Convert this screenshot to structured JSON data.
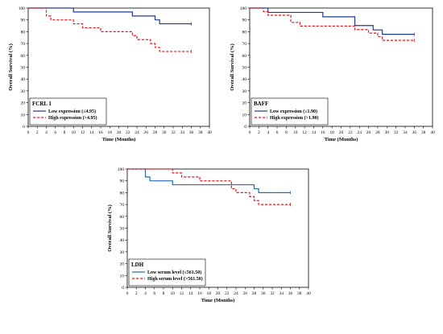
{
  "chart_data": [
    {
      "type": "line",
      "step": true,
      "xlabel": "Time (Months)",
      "ylabel": "Overall Survival  (%)",
      "xlim": [
        0,
        40
      ],
      "ylim": [
        0,
        100
      ],
      "xticks": [
        0,
        2,
        4,
        6,
        8,
        10,
        12,
        14,
        16,
        18,
        20,
        22,
        24,
        26,
        28,
        30,
        32,
        34,
        36,
        38,
        40
      ],
      "yticks": [
        0,
        10,
        20,
        30,
        40,
        50,
        60,
        70,
        80,
        90,
        100
      ],
      "legend": {
        "title": "FCRL 1",
        "position": "bottom-left",
        "entries": [
          "Low expression (≤4.95)",
          "High expression  (>4.95)"
        ]
      },
      "series": [
        {
          "name": "Low expression (≤4.95)",
          "color": "#1f3a93",
          "dash": "solid",
          "points": [
            [
              0,
              100
            ],
            [
              10,
              100
            ],
            [
              10,
              96.7
            ],
            [
              23,
              96.7
            ],
            [
              23,
              93.3
            ],
            [
              28,
              93.3
            ],
            [
              28,
              90
            ],
            [
              29,
              90
            ],
            [
              29,
              86.7
            ],
            [
              36,
              86.7
            ]
          ]
        },
        {
          "name": "High expression  (>4.95)",
          "color": "#e8191c",
          "dash": "dashed",
          "points": [
            [
              0,
              100
            ],
            [
              4,
              100
            ],
            [
              4,
              93.3
            ],
            [
              5,
              93.3
            ],
            [
              5,
              90
            ],
            [
              10,
              90
            ],
            [
              10,
              86.7
            ],
            [
              12,
              86.7
            ],
            [
              12,
              83.3
            ],
            [
              16,
              83.3
            ],
            [
              16,
              80
            ],
            [
              23,
              80
            ],
            [
              23,
              76.7
            ],
            [
              24,
              76.7
            ],
            [
              24,
              73.3
            ],
            [
              27,
              73.3
            ],
            [
              27,
              70
            ],
            [
              28,
              70
            ],
            [
              28,
              66.7
            ],
            [
              29,
              66.7
            ],
            [
              29,
              63.3
            ],
            [
              36,
              63.3
            ]
          ]
        }
      ]
    },
    {
      "type": "line",
      "step": true,
      "xlabel": "Time (Months)",
      "ylabel": "Overall Survival  (%)",
      "xlim": [
        0,
        40
      ],
      "ylim": [
        0,
        100
      ],
      "xticks": [
        0,
        2,
        4,
        6,
        8,
        10,
        12,
        14,
        16,
        18,
        20,
        22,
        24,
        26,
        28,
        30,
        32,
        34,
        36,
        38,
        40
      ],
      "yticks": [
        0,
        10,
        20,
        30,
        40,
        50,
        60,
        70,
        80,
        90,
        100
      ],
      "legend": {
        "title": "BAFF",
        "position": "bottom-left",
        "entries": [
          "Low expression (≤1.90)",
          "High expression  (>1.90)"
        ]
      },
      "series": [
        {
          "name": "Low expression (≤1.90)",
          "color": "#1f3a93",
          "dash": "solid",
          "points": [
            [
              0,
              100
            ],
            [
              4,
              100
            ],
            [
              4,
              96.3
            ],
            [
              16,
              96.3
            ],
            [
              16,
              92.6
            ],
            [
              23,
              92.6
            ],
            [
              23,
              85.2
            ],
            [
              27,
              85.2
            ],
            [
              27,
              81.5
            ],
            [
              29,
              81.5
            ],
            [
              29,
              77.8
            ],
            [
              36,
              77.8
            ]
          ]
        },
        {
          "name": "High expression  (>1.90)",
          "color": "#e8191c",
          "dash": "dashed",
          "points": [
            [
              0,
              100
            ],
            [
              3,
              100
            ],
            [
              3,
              97
            ],
            [
              4,
              97
            ],
            [
              4,
              93.9
            ],
            [
              9,
              93.9
            ],
            [
              9,
              87.9
            ],
            [
              11,
              87.9
            ],
            [
              11,
              84.8
            ],
            [
              23,
              84.8
            ],
            [
              23,
              81.8
            ],
            [
              26,
              81.8
            ],
            [
              26,
              78.8
            ],
            [
              28,
              78.8
            ],
            [
              28,
              75.8
            ],
            [
              29,
              75.8
            ],
            [
              29,
              72.7
            ],
            [
              36,
              72.7
            ]
          ]
        }
      ]
    },
    {
      "type": "line",
      "step": true,
      "xlabel": "Time (Months)",
      "ylabel": "Overall Survival  (%)",
      "xlim": [
        0,
        40
      ],
      "ylim": [
        0,
        100
      ],
      "xticks": [
        0,
        2,
        4,
        6,
        8,
        10,
        12,
        14,
        16,
        18,
        20,
        22,
        24,
        26,
        28,
        30,
        32,
        34,
        36,
        38,
        40
      ],
      "yticks": [
        0,
        10,
        20,
        30,
        40,
        50,
        60,
        70,
        80,
        90,
        100
      ],
      "legend": {
        "title": "LDH",
        "position": "bottom-left",
        "entries": [
          "Low serum level (≤561.50)",
          "High serum level (>561.50)"
        ]
      },
      "series": [
        {
          "name": "Low serum level (≤561.50)",
          "color": "#1f6fb5",
          "dash": "solid",
          "points": [
            [
              0,
              100
            ],
            [
              4,
              100
            ],
            [
              4,
              93.3
            ],
            [
              5,
              93.3
            ],
            [
              5,
              90
            ],
            [
              10,
              90
            ],
            [
              10,
              86.7
            ],
            [
              28,
              86.7
            ],
            [
              28,
              83.3
            ],
            [
              29,
              83.3
            ],
            [
              29,
              80
            ],
            [
              36,
              80
            ]
          ]
        },
        {
          "name": "High serum level (>561.50)",
          "color": "#e8191c",
          "dash": "dashed",
          "points": [
            [
              0,
              100
            ],
            [
              10,
              100
            ],
            [
              10,
              96.7
            ],
            [
              12,
              96.7
            ],
            [
              12,
              93.3
            ],
            [
              16,
              93.3
            ],
            [
              16,
              90
            ],
            [
              23,
              90
            ],
            [
              23,
              83.3
            ],
            [
              24,
              83.3
            ],
            [
              24,
              80
            ],
            [
              27,
              80
            ],
            [
              27,
              76.7
            ],
            [
              28,
              76.7
            ],
            [
              28,
              73.3
            ],
            [
              29,
              73.3
            ],
            [
              29,
              70
            ],
            [
              36,
              70
            ]
          ]
        }
      ]
    }
  ]
}
